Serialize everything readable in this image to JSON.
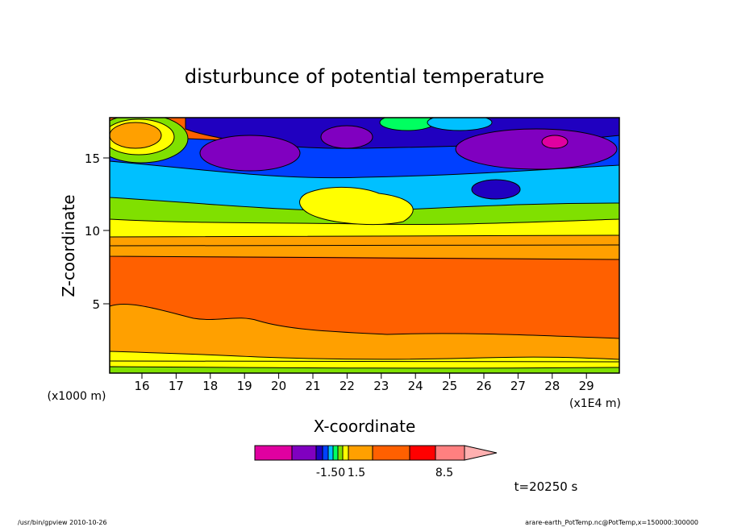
{
  "chart_data": {
    "type": "heatmap",
    "title": "disturbunce of potential temperature",
    "xlabel": "X-coordinate",
    "ylabel": "Z-coordinate",
    "x_unit_left": "(x1000 m)",
    "x_unit_right": "(x1E4 m)",
    "x_ticks": [
      "16",
      "17",
      "18",
      "19",
      "20",
      "21",
      "22",
      "23",
      "24",
      "25",
      "26",
      "27",
      "28",
      "29"
    ],
    "y_ticks": [
      "5",
      "10",
      "15"
    ],
    "xlim": [
      150000,
      300000
    ],
    "ylim": [
      0,
      17.5
    ],
    "colorbar": {
      "colors": [
        "#e000a0",
        "#8000c0",
        "#2000c0",
        "#0040ff",
        "#00c0ff",
        "#00ff60",
        "#80e000",
        "#ffff00",
        "#ffa000",
        "#ff6000",
        "#ff0000",
        "#ff8080",
        "#ffb0b0"
      ],
      "labels": [
        "-1.50",
        "1.5",
        "8.5"
      ]
    },
    "time_label": "t=20250 s"
  },
  "footer": {
    "left": "/usr/bin/gpview   2010-10-26",
    "right": "arare-earth_PotTemp.nc@PotTemp,x=150000:300000"
  }
}
